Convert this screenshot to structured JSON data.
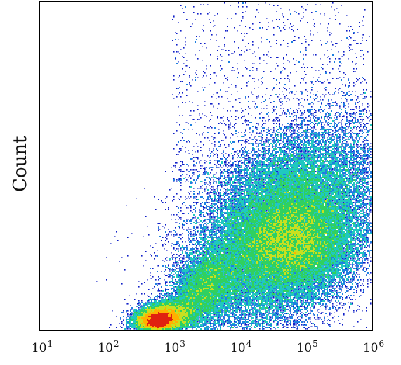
{
  "chart_data": {
    "type": "scatter",
    "title": "",
    "xlabel": "",
    "ylabel": "Count",
    "x_scale": "log",
    "xlim": [
      10,
      1000000
    ],
    "grid": false,
    "legend": "none",
    "x_ticks": [
      {
        "base": "10",
        "exp": "1"
      },
      {
        "base": "10",
        "exp": "2"
      },
      {
        "base": "10",
        "exp": "3"
      },
      {
        "base": "10",
        "exp": "4"
      },
      {
        "base": "10",
        "exp": "5"
      },
      {
        "base": "10",
        "exp": "6"
      }
    ],
    "density_colors": [
      "#1020c8",
      "#1e7fe0",
      "#20c8c0",
      "#30d060",
      "#c8e020",
      "#ffb000",
      "#e02010"
    ],
    "populations": [
      {
        "center_log10_x": 2.8,
        "center_y_fraction": 0.03,
        "relative_density": "highest"
      },
      {
        "center_log10_x": 3.4,
        "center_y_fraction": 0.12,
        "relative_density": "high"
      },
      {
        "center_log10_x": 4.8,
        "center_y_fraction": 0.27,
        "relative_density": "medium"
      }
    ]
  }
}
